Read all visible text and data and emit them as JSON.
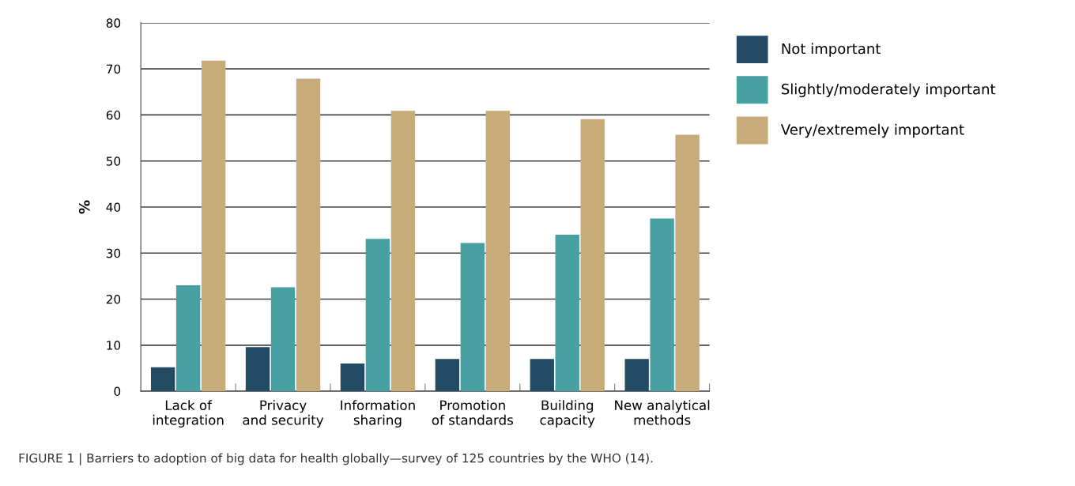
{
  "chart_data": {
    "type": "bar",
    "ylabel": "%",
    "categories": [
      "Lack of\nintegration",
      "Privacy\nand security",
      "Information\nsharing",
      "Promotion\nof standards",
      "Building\ncapacity",
      "New analytical\nmethods"
    ],
    "series": [
      {
        "name": "Not important",
        "color": "#234b63",
        "values": [
          5.2,
          9.6,
          6.0,
          7.0,
          7.0,
          7.0
        ]
      },
      {
        "name": "Slightly/moderately important",
        "color": "#48a0a2",
        "values": [
          23.0,
          22.6,
          33.1,
          32.2,
          34.0,
          37.5
        ]
      },
      {
        "name": "Very/extremely important",
        "color": "#c8ab7b",
        "values": [
          71.8,
          67.9,
          60.9,
          60.9,
          59.1,
          55.7
        ]
      }
    ],
    "ylim": [
      0,
      80
    ],
    "yticks": [
      0,
      10,
      20,
      30,
      40,
      50,
      60,
      70,
      80
    ],
    "grid": "y",
    "legend": "top right",
    "annotations": [
      "FIGURE 1 | Barriers to adoption of big data for health globally—survey of 125 countries by the WHO (14)."
    ]
  }
}
